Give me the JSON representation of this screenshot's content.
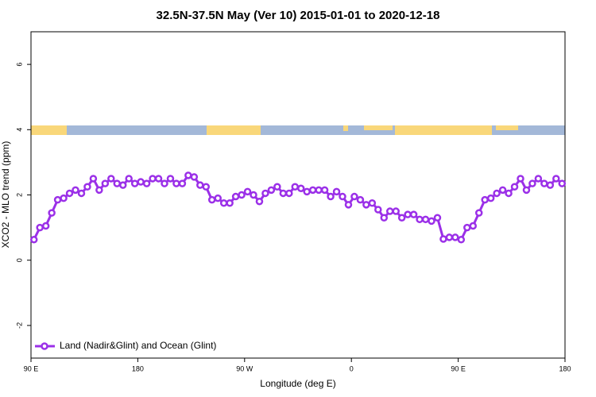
{
  "chart_data": {
    "type": "line",
    "title": "32.5N-37.5N May (Ver 10)   2015-01-01 to 2020-12-18",
    "x_label": "Longitude (deg E)",
    "y_label": "XCO2 - MLO trend (ppm)",
    "xlim": [
      -270,
      180
    ],
    "ylim": [
      -3,
      7
    ],
    "xticks": [
      {
        "value": -270,
        "label": "90 E"
      },
      {
        "value": -180,
        "label": "180"
      },
      {
        "value": -90,
        "label": "90 W"
      },
      0,
      {
        "value": 90,
        "label": "90 E"
      },
      180
    ],
    "yticks": [
      -2,
      0,
      2,
      4,
      6
    ],
    "legend": "bottom-left",
    "x": [
      -267.5,
      -262.5,
      -257.5,
      -252.5,
      -247.5,
      -242.5,
      -237.5,
      -232.5,
      -227.5,
      -222.5,
      -217.5,
      -212.5,
      -207.5,
      -202.5,
      -197.5,
      -192.5,
      -187.5,
      -182.5,
      -177.5,
      -172.5,
      -167.5,
      -162.5,
      -157.5,
      -152.5,
      -147.5,
      -142.5,
      -137.5,
      -132.5,
      -127.5,
      -122.5,
      -117.5,
      -112.5,
      -107.5,
      -102.5,
      -97.5,
      -92.5,
      -87.5,
      -82.5,
      -77.5,
      -72.5,
      -67.5,
      -62.5,
      -57.5,
      -52.5,
      -47.5,
      -42.5,
      -37.5,
      -32.5,
      -27.5,
      -22.5,
      -17.5,
      -12.5,
      -7.5,
      -2.5,
      2.5,
      7.5,
      12.5,
      17.5,
      22.5,
      27.5,
      32.5,
      37.5,
      42.5,
      47.5,
      52.5,
      57.5,
      62.5,
      67.5,
      72.5,
      77.5,
      82.5,
      87.5,
      92.5,
      97.5,
      102.5,
      107.5,
      112.5,
      117.5,
      122.5,
      127.5,
      132.5,
      137.5,
      142.5,
      147.5,
      152.5,
      157.5,
      162.5,
      167.5,
      172.5,
      177.5
    ],
    "series": [
      {
        "name": "Land (Nadir&Glint) and Ocean (Glint)",
        "color": "#9b30e8",
        "values": [
          0.63,
          1.0,
          1.05,
          1.45,
          1.85,
          1.9,
          2.05,
          2.15,
          2.05,
          2.25,
          2.5,
          2.15,
          2.35,
          2.5,
          2.35,
          2.3,
          2.5,
          2.35,
          2.4,
          2.35,
          2.5,
          2.5,
          2.35,
          2.5,
          2.35,
          2.35,
          2.6,
          2.55,
          2.3,
          2.25,
          1.85,
          1.9,
          1.75,
          1.75,
          1.95,
          2.0,
          2.1,
          2.0,
          1.8,
          2.05,
          2.15,
          2.25,
          2.05,
          2.05,
          2.25,
          2.2,
          2.1,
          2.15,
          2.15,
          2.15,
          1.95,
          2.1,
          1.95,
          1.7,
          1.95,
          1.85,
          1.7,
          1.75,
          1.55,
          1.3,
          1.5,
          1.5,
          1.3,
          1.4,
          1.4,
          1.25,
          1.25,
          1.2,
          1.3,
          0.65,
          0.7,
          0.7,
          0.63,
          1.0,
          1.05,
          1.45,
          1.85,
          1.9,
          2.05,
          2.15,
          2.05,
          2.25,
          2.5,
          2.15,
          2.35,
          2.5,
          2.35,
          2.3,
          2.5,
          2.35
        ]
      }
    ]
  }
}
